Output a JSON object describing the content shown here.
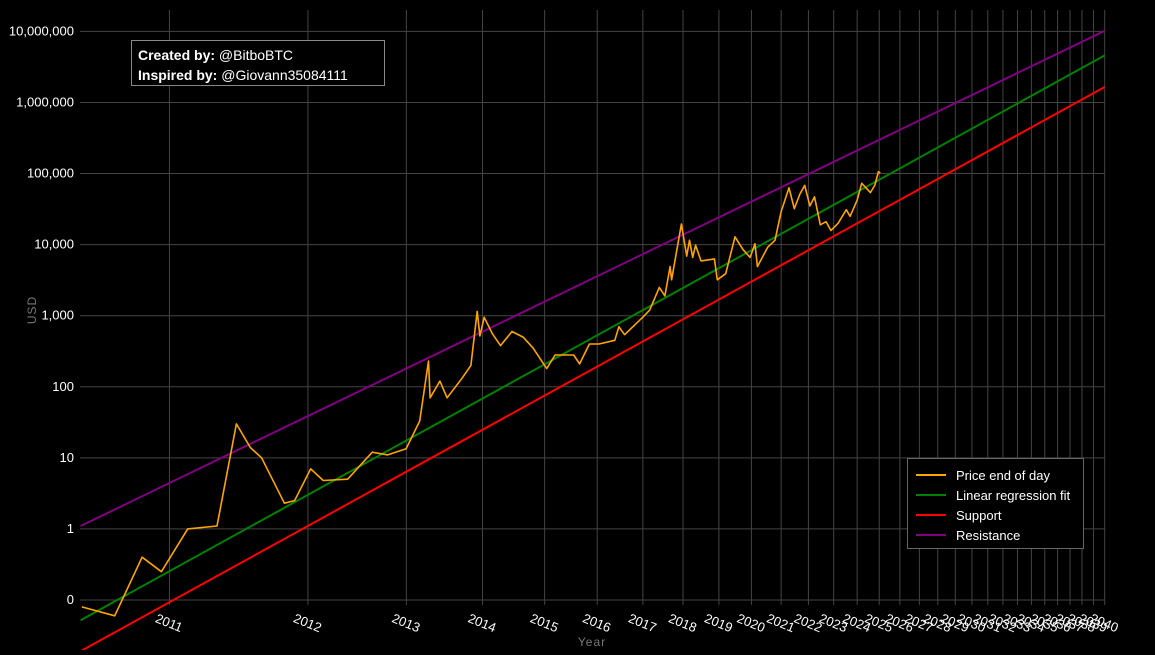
{
  "credits": {
    "created_label": "Created by:",
    "created_value": "@BitboBTC",
    "inspired_label": "Inspired by:",
    "inspired_value": "@Giovann35084111"
  },
  "chart_data": {
    "type": "line",
    "xlabel": "Year",
    "ylabel": "USD",
    "y_scale": "log",
    "x_scale": "log(days since genesis)",
    "grid": true,
    "legend_placement": "bottom-right",
    "y_ticks": [
      {
        "value": 0.1,
        "label": "0"
      },
      {
        "value": 1,
        "label": "1"
      },
      {
        "value": 10,
        "label": "10"
      },
      {
        "value": 100,
        "label": "100"
      },
      {
        "value": 1000,
        "label": "1,000"
      },
      {
        "value": 10000,
        "label": "10,000"
      },
      {
        "value": 100000,
        "label": "100,000"
      },
      {
        "value": 1000000,
        "label": "1,000,000"
      },
      {
        "value": 10000000,
        "label": "10,000,000"
      }
    ],
    "x_ticks": [
      "2011",
      "2012",
      "2013",
      "2014",
      "2015",
      "2016",
      "2017",
      "2018",
      "2019",
      "2020",
      "2021",
      "2022",
      "2023",
      "2024",
      "2025",
      "2026",
      "2027",
      "2028",
      "2029",
      "2030",
      "2031",
      "2032",
      "2033",
      "2034",
      "2035",
      "2036",
      "2037",
      "2038",
      "2039",
      "2040"
    ],
    "series": [
      {
        "name": "Price end of day",
        "color": "#FFA500",
        "points": [
          [
            "2010-07-20",
            0.08
          ],
          [
            "2010-09-15",
            0.06
          ],
          [
            "2010-11-06",
            0.4
          ],
          [
            "2010-12-15",
            0.25
          ],
          [
            "2011-02-10",
            1.0
          ],
          [
            "2011-04-20",
            1.1
          ],
          [
            "2011-06-08",
            30
          ],
          [
            "2011-07-15",
            14
          ],
          [
            "2011-08-15",
            10
          ],
          [
            "2011-10-20",
            2.3
          ],
          [
            "2011-11-20",
            2.5
          ],
          [
            "2012-01-10",
            7
          ],
          [
            "2012-02-20",
            4.8
          ],
          [
            "2012-05-15",
            5
          ],
          [
            "2012-08-15",
            12
          ],
          [
            "2012-10-15",
            11
          ],
          [
            "2012-12-31",
            13.4
          ],
          [
            "2013-02-28",
            33
          ],
          [
            "2013-04-09",
            230
          ],
          [
            "2013-04-16",
            70
          ],
          [
            "2013-06-01",
            120
          ],
          [
            "2013-07-05",
            70
          ],
          [
            "2013-09-15",
            130
          ],
          [
            "2013-11-01",
            200
          ],
          [
            "2013-12-04",
            1150
          ],
          [
            "2013-12-18",
            520
          ],
          [
            "2014-01-10",
            950
          ],
          [
            "2014-02-25",
            550
          ],
          [
            "2014-04-10",
            380
          ],
          [
            "2014-06-15",
            600
          ],
          [
            "2014-08-20",
            500
          ],
          [
            "2014-10-20",
            350
          ],
          [
            "2015-01-14",
            180
          ],
          [
            "2015-03-10",
            280
          ],
          [
            "2015-07-15",
            280
          ],
          [
            "2015-08-25",
            210
          ],
          [
            "2015-11-04",
            400
          ],
          [
            "2016-01-15",
            400
          ],
          [
            "2016-05-15",
            450
          ],
          [
            "2016-06-17",
            700
          ],
          [
            "2016-08-02",
            540
          ],
          [
            "2016-12-31",
            950
          ],
          [
            "2017-03-01",
            1200
          ],
          [
            "2017-05-25",
            2500
          ],
          [
            "2017-07-15",
            1900
          ],
          [
            "2017-09-01",
            4900
          ],
          [
            "2017-09-15",
            3200
          ],
          [
            "2017-12-17",
            19500
          ],
          [
            "2018-02-06",
            6900
          ],
          [
            "2018-03-05",
            11500
          ],
          [
            "2018-04-06",
            6600
          ],
          [
            "2018-05-05",
            9800
          ],
          [
            "2018-06-28",
            5900
          ],
          [
            "2018-11-14",
            6300
          ],
          [
            "2018-12-15",
            3200
          ],
          [
            "2019-03-15",
            3900
          ],
          [
            "2019-06-26",
            12900
          ],
          [
            "2019-09-25",
            8500
          ],
          [
            "2019-12-17",
            6600
          ],
          [
            "2020-02-13",
            10300
          ],
          [
            "2020-03-12",
            4900
          ],
          [
            "2020-07-15",
            9200
          ],
          [
            "2020-10-15",
            11500
          ],
          [
            "2020-12-31",
            29000
          ],
          [
            "2021-04-13",
            63000
          ],
          [
            "2021-06-22",
            32000
          ],
          [
            "2021-09-05",
            51000
          ],
          [
            "2021-11-10",
            68000
          ],
          [
            "2022-01-22",
            35000
          ],
          [
            "2022-03-28",
            47000
          ],
          [
            "2022-06-18",
            19000
          ],
          [
            "2022-09-10",
            21000
          ],
          [
            "2022-11-21",
            15800
          ],
          [
            "2023-03-10",
            20000
          ],
          [
            "2023-07-13",
            31000
          ],
          [
            "2023-09-11",
            25000
          ],
          [
            "2023-12-31",
            42000
          ],
          [
            "2024-03-14",
            73000
          ],
          [
            "2024-08-05",
            54000
          ],
          [
            "2024-10-20",
            69000
          ],
          [
            "2024-12-17",
            106000
          ],
          [
            "2025-01-20",
            101000
          ]
        ]
      },
      {
        "name": "Linear regression fit",
        "color": "#008000",
        "endpoints": [
          [
            "2010-07-18",
            0.052
          ],
          [
            "2040-01-01",
            4600000
          ]
        ]
      },
      {
        "name": "Support",
        "color": "#FF0000",
        "endpoints": [
          [
            "2010-07-18",
            0.019
          ],
          [
            "2040-01-01",
            1650000
          ]
        ]
      },
      {
        "name": "Resistance",
        "color": "#800080",
        "endpoints": [
          [
            "2010-07-18",
            1.1
          ],
          [
            "2040-01-01",
            10200000
          ]
        ]
      }
    ]
  }
}
